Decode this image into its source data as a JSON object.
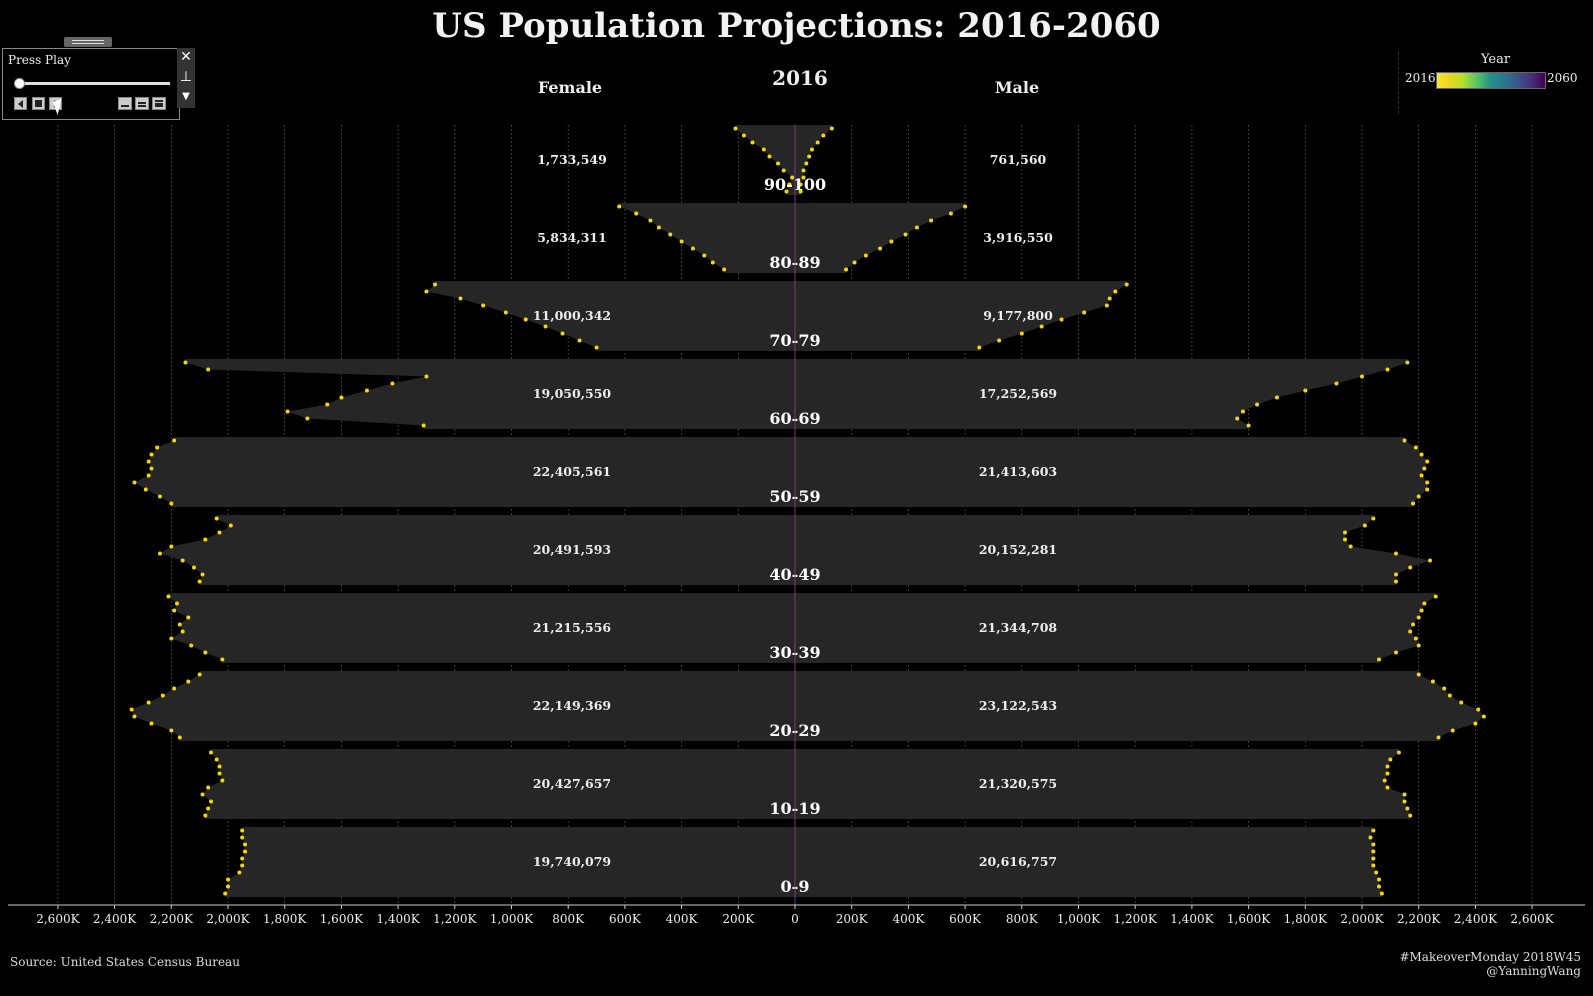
{
  "title": "US Population Projections: 2016-2060",
  "headers": {
    "female": "Female",
    "male": "Male",
    "year": "2016"
  },
  "player": {
    "title": "Press Play"
  },
  "legend": {
    "title": "Year",
    "min": "2016",
    "max": "2060"
  },
  "source": "Source: United States Census Bureau",
  "credit": [
    "#MakeoverMonday 2018W45",
    "@YanningWang"
  ],
  "colors": {
    "bar": "#262626",
    "dot": "#f5d60a",
    "background": "#000000"
  },
  "chart_data": {
    "type": "bar",
    "orientation": "horizontal-butterfly",
    "year": "2016",
    "categories": [
      "90-100",
      "80-89",
      "70-79",
      "60-69",
      "50-59",
      "40-49",
      "30-39",
      "20-29",
      "10-19",
      "0-9"
    ],
    "series": [
      {
        "name": "Female",
        "values": [
          1733549,
          5834311,
          11000342,
          19050550,
          22405561,
          20491593,
          21215556,
          22149369,
          20427657,
          19740079
        ],
        "labels": [
          "1,733,549",
          "5,834,311",
          "11,000,342",
          "19,050,550",
          "22,405,561",
          "20,491,593",
          "21,215,556",
          "22,149,369",
          "20,427,657",
          "19,740,079"
        ]
      },
      {
        "name": "Male",
        "values": [
          761560,
          3916550,
          9177800,
          17252569,
          21413603,
          20152281,
          21344708,
          23122543,
          21320575,
          20616757
        ],
        "labels": [
          "761,560",
          "3,916,550",
          "9,177,800",
          "17,252,569",
          "21,413,603",
          "20,152,281",
          "21,344,708",
          "23,122,543",
          "21,320,575",
          "20,616,757"
        ]
      }
    ],
    "single_age_dots": {
      "female": [
        [
          30,
          20,
          10,
          40,
          60,
          90,
          110,
          150,
          180,
          210
        ],
        [
          250,
          290,
          320,
          360,
          400,
          440,
          480,
          510,
          560,
          620
        ],
        [
          700,
          760,
          820,
          880,
          950,
          1020,
          1100,
          1180,
          1300,
          1270
        ],
        [
          1310,
          1720,
          1790,
          1650,
          1600,
          1510,
          1420,
          1300,
          2070,
          2150
        ],
        [
          2200,
          2240,
          2290,
          2330,
          2280,
          2270,
          2280,
          2270,
          2250,
          2190
        ],
        [
          2100,
          2090,
          2120,
          2160,
          2240,
          2200,
          2080,
          2030,
          1990,
          2040
        ],
        [
          2020,
          2080,
          2130,
          2200,
          2160,
          2170,
          2140,
          2190,
          2180,
          2210
        ],
        [
          2170,
          2200,
          2270,
          2330,
          2340,
          2280,
          2230,
          2190,
          2140,
          2100
        ],
        [
          2080,
          2070,
          2060,
          2090,
          2070,
          2020,
          2030,
          2030,
          2040,
          2060
        ],
        [
          2010,
          2000,
          2000,
          1960,
          1950,
          1950,
          1940,
          1940,
          1950,
          1950
        ]
      ],
      "male": [
        [
          20,
          20,
          30,
          30,
          40,
          50,
          60,
          80,
          100,
          130
        ],
        [
          180,
          210,
          250,
          300,
          340,
          390,
          430,
          480,
          550,
          600
        ],
        [
          650,
          720,
          800,
          870,
          940,
          1020,
          1100,
          1110,
          1130,
          1170
        ],
        [
          1600,
          1560,
          1580,
          1630,
          1700,
          1800,
          1910,
          2000,
          2090,
          2160
        ],
        [
          2180,
          2200,
          2230,
          2230,
          2210,
          2220,
          2230,
          2210,
          2190,
          2150
        ],
        [
          2120,
          2120,
          2170,
          2240,
          2120,
          1960,
          1940,
          1940,
          2010,
          2040
        ],
        [
          2060,
          2120,
          2200,
          2190,
          2170,
          2180,
          2200,
          2210,
          2220,
          2260
        ],
        [
          2270,
          2320,
          2400,
          2430,
          2410,
          2350,
          2310,
          2290,
          2250,
          2200
        ],
        [
          2170,
          2160,
          2150,
          2150,
          2090,
          2080,
          2090,
          2090,
          2100,
          2130
        ],
        [
          2070,
          2060,
          2060,
          2050,
          2040,
          2040,
          2040,
          2040,
          2030,
          2040
        ]
      ]
    },
    "dots_unit": "K",
    "xlabel": "",
    "ylabel": "",
    "xlim": [
      -2600,
      2600
    ],
    "x_unit": "K",
    "x_ticks": [
      "2,600K",
      "2,400K",
      "2,200K",
      "2,000K",
      "1,800K",
      "1,600K",
      "1,400K",
      "1,200K",
      "1,000K",
      "800K",
      "600K",
      "400K",
      "200K",
      "0",
      "200K",
      "400K",
      "600K",
      "800K",
      "1,000K",
      "1,200K",
      "1,400K",
      "1,600K",
      "1,800K",
      "2,000K",
      "2,200K",
      "2,400K",
      "2,600K"
    ],
    "x_tick_values": [
      -2600,
      -2400,
      -2200,
      -2000,
      -1800,
      -1600,
      -1400,
      -1200,
      -1000,
      -800,
      -600,
      -400,
      -200,
      0,
      200,
      400,
      600,
      800,
      1000,
      1200,
      1400,
      1600,
      1800,
      2000,
      2200,
      2400,
      2600
    ],
    "grid": true
  }
}
